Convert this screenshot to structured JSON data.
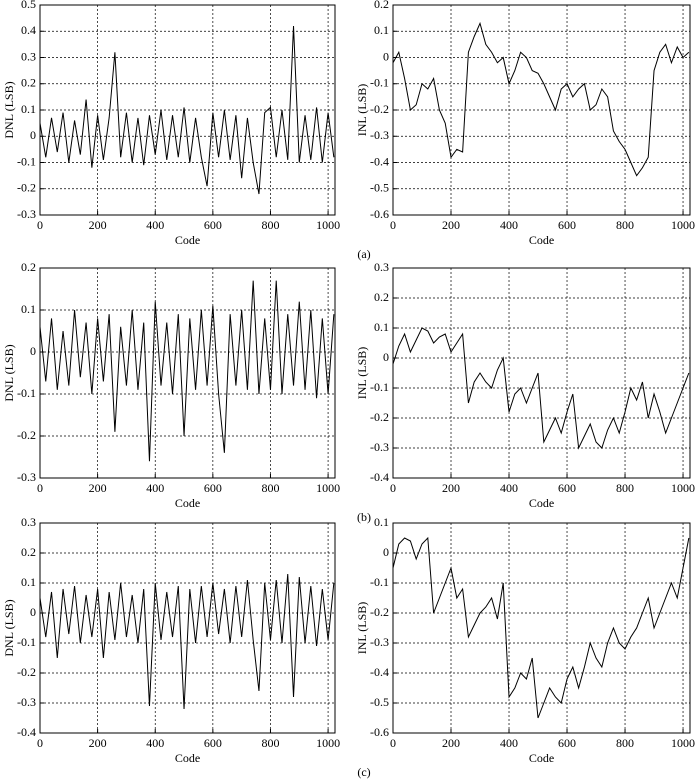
{
  "chart_data": [
    {
      "type": "line",
      "caption": "(a)",
      "xlabel": "Code",
      "ylabel": "DNL (LSB)",
      "color": "#000000",
      "grid": true,
      "xlim": [
        0,
        1024
      ],
      "xticks": [
        0,
        200,
        400,
        600,
        800,
        1000
      ],
      "ylim": [
        -0.3,
        0.5
      ],
      "yticks": [
        -0.3,
        -0.2,
        -0.1,
        0,
        0.1,
        0.2,
        0.3,
        0.4,
        0.5
      ],
      "x": [
        0,
        20,
        40,
        60,
        80,
        100,
        120,
        140,
        160,
        180,
        200,
        220,
        240,
        260,
        280,
        300,
        320,
        340,
        360,
        380,
        400,
        420,
        440,
        460,
        480,
        500,
        520,
        540,
        560,
        580,
        600,
        620,
        640,
        660,
        680,
        700,
        720,
        740,
        760,
        780,
        800,
        820,
        840,
        860,
        880,
        900,
        920,
        940,
        960,
        980,
        1000,
        1020
      ],
      "values": [
        0.05,
        -0.08,
        0.07,
        -0.06,
        0.09,
        -0.1,
        0.06,
        -0.07,
        0.14,
        -0.12,
        0.08,
        -0.09,
        0.07,
        0.32,
        -0.08,
        0.09,
        -0.1,
        0.07,
        -0.11,
        0.08,
        -0.07,
        0.1,
        -0.09,
        0.08,
        -0.08,
        0.11,
        -0.1,
        0.07,
        -0.08,
        -0.19,
        0.09,
        -0.08,
        0.1,
        -0.09,
        0.08,
        -0.16,
        0.07,
        -0.1,
        -0.22,
        0.09,
        0.11,
        -0.08,
        0.1,
        -0.09,
        0.42,
        -0.1,
        0.08,
        -0.09,
        0.11,
        -0.1,
        0.09,
        -0.08
      ]
    },
    {
      "type": "line",
      "xlabel": "Code",
      "ylabel": "INL (LSB)",
      "color": "#000000",
      "grid": true,
      "xlim": [
        0,
        1024
      ],
      "xticks": [
        0,
        200,
        400,
        600,
        800,
        1000
      ],
      "ylim": [
        -0.6,
        0.2
      ],
      "yticks": [
        -0.6,
        -0.5,
        -0.4,
        -0.3,
        -0.2,
        -0.1,
        0,
        0.1,
        0.2
      ],
      "x": [
        0,
        20,
        40,
        60,
        80,
        100,
        120,
        140,
        160,
        180,
        200,
        220,
        240,
        260,
        280,
        300,
        320,
        340,
        360,
        380,
        400,
        420,
        440,
        460,
        480,
        500,
        520,
        540,
        560,
        580,
        600,
        620,
        640,
        660,
        680,
        700,
        720,
        740,
        760,
        780,
        800,
        820,
        840,
        860,
        880,
        900,
        920,
        940,
        960,
        980,
        1000,
        1020
      ],
      "values": [
        -0.02,
        0.02,
        -0.08,
        -0.2,
        -0.18,
        -0.1,
        -0.12,
        -0.08,
        -0.2,
        -0.25,
        -0.38,
        -0.35,
        -0.36,
        0.02,
        0.08,
        0.13,
        0.05,
        0.02,
        -0.02,
        0.0,
        -0.1,
        -0.05,
        0.02,
        0.0,
        -0.05,
        -0.06,
        -0.1,
        -0.15,
        -0.2,
        -0.12,
        -0.1,
        -0.15,
        -0.12,
        -0.1,
        -0.2,
        -0.18,
        -0.12,
        -0.15,
        -0.28,
        -0.32,
        -0.35,
        -0.4,
        -0.45,
        -0.42,
        -0.38,
        -0.05,
        0.02,
        0.05,
        -0.02,
        0.04,
        0.0,
        0.02
      ]
    },
    {
      "type": "line",
      "caption": "(b)",
      "xlabel": "Code",
      "ylabel": "DNL (LSB)",
      "color": "#000000",
      "grid": true,
      "xlim": [
        0,
        1024
      ],
      "xticks": [
        0,
        200,
        400,
        600,
        800,
        1000
      ],
      "ylim": [
        -0.3,
        0.2
      ],
      "yticks": [
        -0.3,
        -0.2,
        -0.1,
        0,
        0.1,
        0.2
      ],
      "x": [
        0,
        20,
        40,
        60,
        80,
        100,
        120,
        140,
        160,
        180,
        200,
        220,
        240,
        260,
        280,
        300,
        320,
        340,
        360,
        380,
        400,
        420,
        440,
        460,
        480,
        500,
        520,
        540,
        560,
        580,
        600,
        620,
        640,
        660,
        680,
        700,
        720,
        740,
        760,
        780,
        800,
        820,
        840,
        860,
        880,
        900,
        920,
        940,
        960,
        980,
        1000,
        1020
      ],
      "values": [
        0.06,
        -0.07,
        0.08,
        -0.09,
        0.05,
        -0.08,
        0.1,
        -0.06,
        0.07,
        -0.1,
        0.08,
        -0.07,
        0.09,
        -0.19,
        0.06,
        -0.08,
        0.1,
        -0.09,
        0.07,
        -0.26,
        0.12,
        -0.08,
        0.07,
        -0.1,
        0.09,
        -0.2,
        0.08,
        -0.09,
        0.1,
        -0.08,
        0.11,
        -0.1,
        -0.24,
        0.09,
        -0.08,
        0.1,
        -0.09,
        0.17,
        -0.1,
        0.08,
        -0.09,
        0.17,
        -0.1,
        0.09,
        -0.08,
        0.12,
        -0.09,
        0.1,
        -0.11,
        0.08,
        -0.1,
        0.09
      ]
    },
    {
      "type": "line",
      "xlabel": "Code",
      "ylabel": "INL (LSB)",
      "color": "#000000",
      "grid": true,
      "xlim": [
        0,
        1024
      ],
      "xticks": [
        0,
        200,
        400,
        600,
        800,
        1000
      ],
      "ylim": [
        -0.4,
        0.3
      ],
      "yticks": [
        -0.4,
        -0.3,
        -0.2,
        -0.1,
        0,
        0.1,
        0.2,
        0.3
      ],
      "x": [
        0,
        20,
        40,
        60,
        80,
        100,
        120,
        140,
        160,
        180,
        200,
        220,
        240,
        260,
        280,
        300,
        320,
        340,
        360,
        380,
        400,
        420,
        440,
        460,
        480,
        500,
        520,
        540,
        560,
        580,
        600,
        620,
        640,
        660,
        680,
        700,
        720,
        740,
        760,
        780,
        800,
        820,
        840,
        860,
        880,
        900,
        920,
        940,
        960,
        980,
        1000,
        1020
      ],
      "values": [
        -0.02,
        0.04,
        0.08,
        0.02,
        0.06,
        0.1,
        0.09,
        0.05,
        0.07,
        0.08,
        0.02,
        0.05,
        0.08,
        -0.15,
        -0.08,
        -0.05,
        -0.08,
        -0.1,
        -0.04,
        0.0,
        -0.18,
        -0.12,
        -0.1,
        -0.15,
        -0.1,
        -0.05,
        -0.28,
        -0.24,
        -0.2,
        -0.25,
        -0.18,
        -0.12,
        -0.3,
        -0.26,
        -0.22,
        -0.28,
        -0.3,
        -0.24,
        -0.2,
        -0.25,
        -0.18,
        -0.1,
        -0.14,
        -0.08,
        -0.2,
        -0.12,
        -0.18,
        -0.25,
        -0.2,
        -0.15,
        -0.1,
        -0.05
      ]
    },
    {
      "type": "line",
      "caption": "(c)",
      "xlabel": "Code",
      "ylabel": "DNL (LSB)",
      "color": "#000000",
      "grid": true,
      "xlim": [
        0,
        1024
      ],
      "xticks": [
        0,
        200,
        400,
        600,
        800,
        1000
      ],
      "ylim": [
        -0.4,
        0.3
      ],
      "yticks": [
        -0.4,
        -0.3,
        -0.2,
        -0.1,
        0,
        0.1,
        0.2,
        0.3
      ],
      "x": [
        0,
        20,
        40,
        60,
        80,
        100,
        120,
        140,
        160,
        180,
        200,
        220,
        240,
        260,
        280,
        300,
        320,
        340,
        360,
        380,
        400,
        420,
        440,
        460,
        480,
        500,
        520,
        540,
        560,
        580,
        600,
        620,
        640,
        660,
        680,
        700,
        720,
        740,
        760,
        780,
        800,
        820,
        840,
        860,
        880,
        900,
        920,
        940,
        960,
        980,
        1000,
        1020
      ],
      "values": [
        0.05,
        -0.08,
        0.07,
        -0.15,
        0.08,
        -0.07,
        0.09,
        -0.1,
        0.06,
        -0.08,
        0.08,
        -0.15,
        0.07,
        -0.09,
        0.1,
        -0.08,
        0.06,
        -0.1,
        0.08,
        -0.31,
        0.1,
        -0.09,
        0.07,
        -0.08,
        0.09,
        -0.32,
        0.08,
        -0.1,
        0.09,
        -0.08,
        0.1,
        -0.07,
        0.08,
        -0.1,
        0.09,
        -0.08,
        0.11,
        -0.09,
        -0.26,
        0.1,
        -0.09,
        0.11,
        -0.1,
        0.13,
        -0.28,
        0.12,
        -0.1,
        0.09,
        -0.11,
        0.08,
        -0.09,
        0.1
      ]
    },
    {
      "type": "line",
      "xlabel": "Code",
      "ylabel": "INL (LSB)",
      "color": "#000000",
      "grid": true,
      "xlim": [
        0,
        1024
      ],
      "xticks": [
        0,
        200,
        400,
        600,
        800,
        1000
      ],
      "ylim": [
        -0.6,
        0.1
      ],
      "yticks": [
        -0.6,
        -0.5,
        -0.4,
        -0.3,
        -0.2,
        -0.1,
        0,
        0.1
      ],
      "x": [
        0,
        20,
        40,
        60,
        80,
        100,
        120,
        140,
        160,
        180,
        200,
        220,
        240,
        260,
        280,
        300,
        320,
        340,
        360,
        380,
        400,
        420,
        440,
        460,
        480,
        500,
        520,
        540,
        560,
        580,
        600,
        620,
        640,
        660,
        680,
        700,
        720,
        740,
        760,
        780,
        800,
        820,
        840,
        860,
        880,
        900,
        920,
        940,
        960,
        980,
        1000,
        1020
      ],
      "values": [
        -0.05,
        0.03,
        0.05,
        0.04,
        -0.02,
        0.03,
        0.05,
        -0.2,
        -0.15,
        -0.1,
        -0.05,
        -0.15,
        -0.12,
        -0.28,
        -0.24,
        -0.2,
        -0.18,
        -0.15,
        -0.22,
        -0.1,
        -0.48,
        -0.45,
        -0.4,
        -0.42,
        -0.35,
        -0.55,
        -0.5,
        -0.45,
        -0.48,
        -0.5,
        -0.42,
        -0.38,
        -0.45,
        -0.38,
        -0.3,
        -0.35,
        -0.38,
        -0.3,
        -0.25,
        -0.3,
        -0.32,
        -0.28,
        -0.25,
        -0.2,
        -0.15,
        -0.25,
        -0.2,
        -0.15,
        -0.1,
        -0.15,
        -0.05,
        0.05
      ]
    }
  ]
}
